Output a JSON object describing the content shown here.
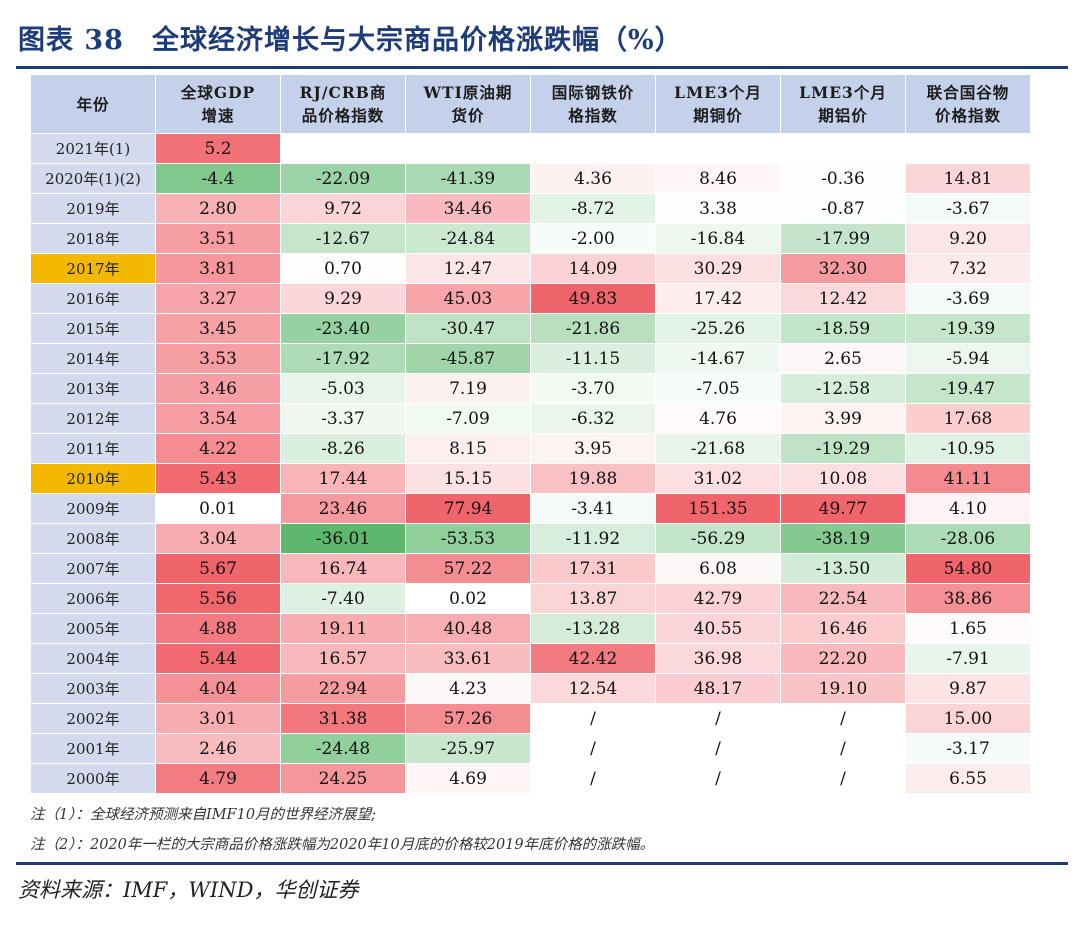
{
  "title": "图表 38　全球经济增长与大宗商品价格涨跌幅（%）",
  "table": {
    "headers": [
      [
        "年份"
      ],
      [
        "全球GDP",
        "增速"
      ],
      [
        "RJ/CRB商",
        "品价格指数"
      ],
      [
        "WTI原油期",
        "货价"
      ],
      [
        "国际钢铁价",
        "格指数"
      ],
      [
        "LME3个月",
        "期铜价"
      ],
      [
        "LME3个月",
        "期铝价"
      ],
      [
        "联合国谷物",
        "价格指数"
      ]
    ],
    "rows": [
      {
        "year": "2021年(1)",
        "highlight": false,
        "values": [
          "5.2",
          "",
          "",
          "",
          "",
          "",
          ""
        ]
      },
      {
        "year": "2020年(1)(2)",
        "highlight": false,
        "values": [
          "-4.4",
          "-22.09",
          "-41.39",
          "4.36",
          "8.46",
          "-0.36",
          "14.81"
        ]
      },
      {
        "year": "2019年",
        "highlight": false,
        "values": [
          "2.80",
          "9.72",
          "34.46",
          "-8.72",
          "3.38",
          "-0.87",
          "-3.67"
        ]
      },
      {
        "year": "2018年",
        "highlight": false,
        "values": [
          "3.51",
          "-12.67",
          "-24.84",
          "-2.00",
          "-16.84",
          "-17.99",
          "9.20"
        ]
      },
      {
        "year": "2017年",
        "highlight": true,
        "values": [
          "3.81",
          "0.70",
          "12.47",
          "14.09",
          "30.29",
          "32.30",
          "7.32"
        ]
      },
      {
        "year": "2016年",
        "highlight": false,
        "values": [
          "3.27",
          "9.29",
          "45.03",
          "49.83",
          "17.42",
          "12.42",
          "-3.69"
        ]
      },
      {
        "year": "2015年",
        "highlight": false,
        "values": [
          "3.45",
          "-23.40",
          "-30.47",
          "-21.86",
          "-25.26",
          "-18.59",
          "-19.39"
        ]
      },
      {
        "year": "2014年",
        "highlight": false,
        "values": [
          "3.53",
          "-17.92",
          "-45.87",
          "-11.15",
          "-14.67",
          "2.65",
          "-5.94"
        ]
      },
      {
        "year": "2013年",
        "highlight": false,
        "values": [
          "3.46",
          "-5.03",
          "7.19",
          "-3.70",
          "-7.05",
          "-12.58",
          "-19.47"
        ]
      },
      {
        "year": "2012年",
        "highlight": false,
        "values": [
          "3.54",
          "-3.37",
          "-7.09",
          "-6.32",
          "4.76",
          "3.99",
          "17.68"
        ]
      },
      {
        "year": "2011年",
        "highlight": false,
        "values": [
          "4.22",
          "-8.26",
          "8.15",
          "3.95",
          "-21.68",
          "-19.29",
          "-10.95"
        ]
      },
      {
        "year": "2010年",
        "highlight": true,
        "values": [
          "5.43",
          "17.44",
          "15.15",
          "19.88",
          "31.02",
          "10.08",
          "41.11"
        ]
      },
      {
        "year": "2009年",
        "highlight": false,
        "values": [
          "0.01",
          "23.46",
          "77.94",
          "-3.41",
          "151.35",
          "49.77",
          "4.10"
        ]
      },
      {
        "year": "2008年",
        "highlight": false,
        "values": [
          "3.04",
          "-36.01",
          "-53.53",
          "-11.92",
          "-56.29",
          "-38.19",
          "-28.06"
        ]
      },
      {
        "year": "2007年",
        "highlight": false,
        "values": [
          "5.67",
          "16.74",
          "57.22",
          "17.31",
          "6.08",
          "-13.50",
          "54.80"
        ]
      },
      {
        "year": "2006年",
        "highlight": false,
        "values": [
          "5.56",
          "-7.40",
          "0.02",
          "13.87",
          "42.79",
          "22.54",
          "38.86"
        ]
      },
      {
        "year": "2005年",
        "highlight": false,
        "values": [
          "4.88",
          "19.11",
          "40.48",
          "-13.28",
          "40.55",
          "16.46",
          "1.65"
        ]
      },
      {
        "year": "2004年",
        "highlight": false,
        "values": [
          "5.44",
          "16.57",
          "33.61",
          "42.42",
          "36.98",
          "22.20",
          "-7.91"
        ]
      },
      {
        "year": "2003年",
        "highlight": false,
        "values": [
          "4.04",
          "22.94",
          "4.23",
          "12.54",
          "48.17",
          "19.10",
          "9.87"
        ]
      },
      {
        "year": "2002年",
        "highlight": false,
        "values": [
          "3.01",
          "31.38",
          "57.26",
          "/",
          "/",
          "/",
          "15.00"
        ]
      },
      {
        "year": "2001年",
        "highlight": false,
        "values": [
          "2.46",
          "-24.48",
          "-25.97",
          "/",
          "/",
          "/",
          "-3.17"
        ]
      },
      {
        "year": "2000年",
        "highlight": false,
        "values": [
          "4.79",
          "24.25",
          "4.69",
          "/",
          "/",
          "/",
          "6.55"
        ]
      }
    ]
  },
  "notes": [
    "注（1）：全球经济预测来自IMF10月的世界经济展望;",
    "注（2）：2020年一栏的大宗商品价格涨跌幅为2020年10月底的价格较2019年底价格的涨跌幅。"
  ],
  "source": "资料来源：IMF，WIND，华创证券",
  "colors": {
    "rule": "#1f3c7a",
    "header_bg": "#c5d0ea",
    "year_bg": "#d3daee",
    "highlight": "#f5b800",
    "positive_max": "#f0646b",
    "negative_max": "#5db86e",
    "neutral": "#ffffff"
  }
}
